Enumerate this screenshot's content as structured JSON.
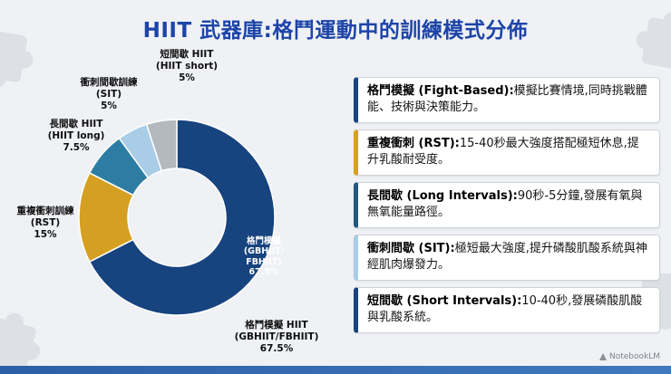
{
  "title": "HIIT 武器庫:格鬥運動中的訓練模式分佈",
  "colors": {
    "title": "#1d44a8",
    "bottom_bar_start": "#2b5fa6",
    "bottom_bar_end": "#4079bd",
    "background": "#eff1f4"
  },
  "chart_data": {
    "type": "pie",
    "donut": true,
    "title": "HIIT 武器庫:格鬥運動中的訓練模式分佈",
    "unit": "%",
    "start_angle_deg": 0,
    "direction": "clockwise",
    "legend_position": "outside-labels",
    "segments": [
      {
        "label": "格鬥模擬 HIIT",
        "code": "(GBHIIT/FBHIIT)",
        "value": 67.5,
        "percent_label": "67.5%",
        "color": "#17437E"
      },
      {
        "label": "重複衝刺訓練",
        "code": "(RST)",
        "value": 15,
        "percent_label": "15%",
        "color": "#D5A021"
      },
      {
        "label": "長間歇 HIIT",
        "code": "(HIIT long)",
        "value": 7.5,
        "percent_label": "7.5%",
        "color": "#2D7DA3"
      },
      {
        "label": "衝刺間歇訓練",
        "code": "(SIT)",
        "value": 5,
        "percent_label": "5%",
        "color": "#A9CDE6"
      },
      {
        "label": "短間歇 HIIT",
        "code": "(HIIT short)",
        "value": 5,
        "percent_label": "5%",
        "color": "#B3B9BF"
      }
    ],
    "inner_label": [
      "格鬥模擬",
      "(GBHIIT/",
      "FBHIIT)",
      "67.5%"
    ]
  },
  "callouts": [
    {
      "term": "格鬥模擬 (Fight-Based):",
      "desc": "模擬比賽情境,同時挑戰體能、技術與決策能力。",
      "accent": "#17437E"
    },
    {
      "term": "重複衝刺 (RST):",
      "desc": "15-40秒最大強度搭配極短休息,提升乳酸耐受度。",
      "accent": "#D5A021"
    },
    {
      "term": "長間歇 (Long Intervals):",
      "desc": "90秒-5分鐘,發展有氧與無氧能量路徑。",
      "accent": "#205A80"
    },
    {
      "term": "衝刺間歇 (SIT):",
      "desc": "極短最大強度,提升磷酸肌酸系統與神經肌肉爆發力。",
      "accent": "#A9CDE6"
    },
    {
      "term": "短間歇 (Short Intervals):",
      "desc": "10-40秒,發展磷酸肌酸與乳酸系統。",
      "accent": "#17437E"
    }
  ],
  "watermark": {
    "label": "NotebookLM"
  }
}
